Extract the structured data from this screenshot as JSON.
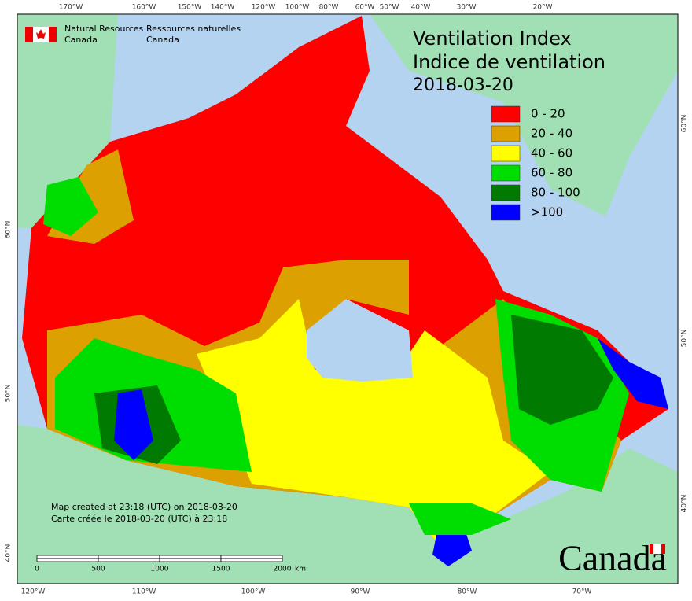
{
  "logo": {
    "en_line1": "Natural Resources",
    "en_line2": "Canada",
    "fr_line1": "Ressources naturelles",
    "fr_line2": "Canada"
  },
  "title": {
    "line1": "Ventilation Index",
    "line2": "Indice de ventilation",
    "date": "2018-03-20"
  },
  "legend": [
    {
      "label": "0 - 20",
      "color": "#ff0000"
    },
    {
      "label": "20 - 40",
      "color": "#dca000"
    },
    {
      "label": "40 - 60",
      "color": "#ffff00"
    },
    {
      "label": "60 - 80",
      "color": "#00dd00"
    },
    {
      "label": "80 - 100",
      "color": "#007a00"
    },
    {
      "label": ">100",
      "color": "#0000ff"
    }
  ],
  "graticule": {
    "top": [
      "170°W",
      "160°W",
      "150°W",
      "140°W",
      "120°W",
      "100°W",
      "80°W",
      "60°W",
      "50°W",
      "40°W",
      "30°W",
      "20°W"
    ],
    "bottom": [
      "120°W",
      "110°W",
      "100°W",
      "90°W",
      "80°W",
      "70°W"
    ],
    "left": [
      "60°N",
      "50°N",
      "40°N"
    ],
    "right": [
      "60°N",
      "50°N",
      "40°N"
    ]
  },
  "footer": {
    "line1": "Map created at 23:18 (UTC) on 2018-03-20",
    "line2": "Carte créée le 2018-03-20 (UTC) à 23:18"
  },
  "scale": {
    "labels": [
      "0",
      "500",
      "1000",
      "1500",
      "2000"
    ],
    "unit": "km"
  },
  "wordmark": "Canada"
}
